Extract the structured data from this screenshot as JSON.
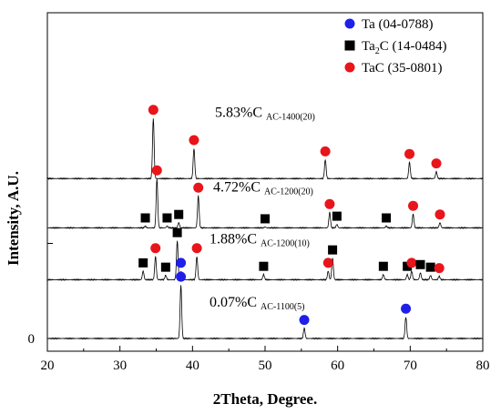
{
  "chart_data": {
    "type": "line",
    "xlabel": "2Theta, Degree.",
    "ylabel": "Intensity, A.U.",
    "xlim": [
      20,
      80
    ],
    "x_ticks": [
      "20",
      "30",
      "40",
      "50",
      "60",
      "70",
      "80"
    ],
    "y_ticks": [
      "0"
    ],
    "legend": [
      {
        "label": "Ta (04-0788)",
        "marker": "circle",
        "color": "#1f1fe8"
      },
      {
        "label": "Ta₂C (14-0484)",
        "label_main": "Ta",
        "label_sub": "2",
        "label_rest": "C (14-0484)",
        "marker": "square",
        "color": "#000000"
      },
      {
        "label": "TaC (35-0801)",
        "marker": "circle",
        "color": "#e8151b"
      }
    ],
    "series": [
      {
        "label_main": "0.07%C",
        "label_sub": "AC-1100(5)",
        "baseline": 0,
        "peaks": [
          {
            "x": 38.4,
            "h": 0.62,
            "phase": "Ta"
          },
          {
            "x": 55.4,
            "h": 0.12,
            "phase": "Ta"
          },
          {
            "x": 69.4,
            "h": 0.25,
            "phase": "Ta"
          }
        ]
      },
      {
        "label_main": "1.88%C",
        "label_sub": "AC-1200(10)",
        "baseline": 0.68,
        "peaks": [
          {
            "x": 33.2,
            "h": 0.1,
            "phase": "Ta2C"
          },
          {
            "x": 34.9,
            "h": 0.27,
            "phase": "TaC"
          },
          {
            "x": 36.3,
            "h": 0.05,
            "phase": "Ta2C"
          },
          {
            "x": 37.9,
            "h": 0.45,
            "phase": "Ta2C"
          },
          {
            "x": 38.4,
            "h": 0.1,
            "phase": "Ta"
          },
          {
            "x": 40.6,
            "h": 0.27,
            "phase": "TaC"
          },
          {
            "x": 49.8,
            "h": 0.06,
            "phase": "Ta2C"
          },
          {
            "x": 58.7,
            "h": 0.1,
            "phase": "TaC"
          },
          {
            "x": 59.3,
            "h": 0.25,
            "phase": "Ta2C"
          },
          {
            "x": 66.3,
            "h": 0.06,
            "phase": "Ta2C"
          },
          {
            "x": 69.6,
            "h": 0.06,
            "phase": "Ta2C"
          },
          {
            "x": 70.2,
            "h": 0.1,
            "phase": "TaC"
          },
          {
            "x": 71.4,
            "h": 0.08,
            "phase": "Ta2C"
          },
          {
            "x": 72.8,
            "h": 0.05,
            "phase": "Ta2C"
          },
          {
            "x": 74.0,
            "h": 0.04,
            "phase": "TaC"
          }
        ]
      },
      {
        "label_main": "4.72%C",
        "label_sub": "AC-1200(20)",
        "baseline": 1.28,
        "peaks": [
          {
            "x": 33.5,
            "h": 0.02,
            "phase": "Ta2C"
          },
          {
            "x": 35.1,
            "h": 0.57,
            "phase": "TaC"
          },
          {
            "x": 36.5,
            "h": 0.02,
            "phase": "Ta2C"
          },
          {
            "x": 38.1,
            "h": 0.06,
            "phase": "Ta2C"
          },
          {
            "x": 40.8,
            "h": 0.37,
            "phase": "TaC"
          },
          {
            "x": 50.0,
            "h": 0.01,
            "phase": "Ta2C"
          },
          {
            "x": 58.9,
            "h": 0.18,
            "phase": "TaC"
          },
          {
            "x": 59.9,
            "h": 0.04,
            "phase": "Ta2C"
          },
          {
            "x": 66.7,
            "h": 0.02,
            "phase": "Ta2C"
          },
          {
            "x": 70.4,
            "h": 0.16,
            "phase": "TaC"
          },
          {
            "x": 74.1,
            "h": 0.06,
            "phase": "TaC"
          }
        ]
      },
      {
        "label_main": "5.83%C",
        "label_sub": "AC-1400(20)",
        "baseline": 1.85,
        "peaks": [
          {
            "x": 34.6,
            "h": 0.7,
            "phase": "TaC"
          },
          {
            "x": 40.2,
            "h": 0.35,
            "phase": "TaC"
          },
          {
            "x": 58.3,
            "h": 0.22,
            "phase": "TaC"
          },
          {
            "x": 69.9,
            "h": 0.19,
            "phase": "TaC"
          },
          {
            "x": 73.6,
            "h": 0.08,
            "phase": "TaC"
          }
        ]
      }
    ]
  }
}
